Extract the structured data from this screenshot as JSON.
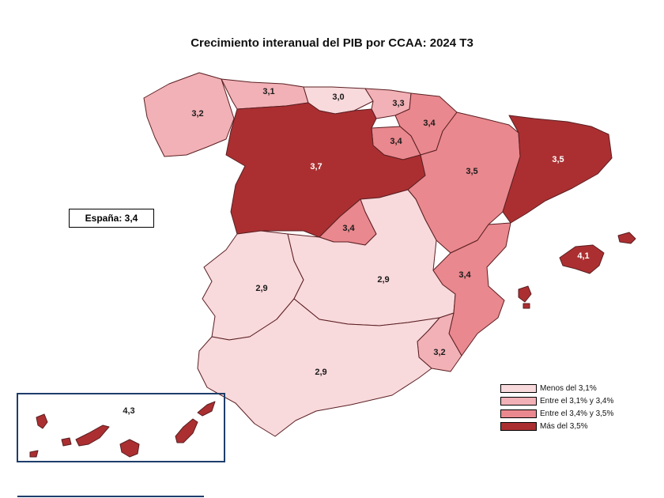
{
  "title": "Crecimiento interanual del PIB por CCAA: 2024 T3",
  "spain_label": "España: 3,4",
  "colors": {
    "lightest": "#f8d9dc",
    "light": "#f2b1b6",
    "medium": "#e9888e",
    "dark": "#ab2f31",
    "border": "#5a1f22",
    "canarias_frame": "#1e3d6b"
  },
  "legend": [
    {
      "label": "Menos del 3,1%",
      "color": "#f8d9dc"
    },
    {
      "label": "Entre el 3,1% y 3,4%",
      "color": "#f2b1b6"
    },
    {
      "label": "Entre el 3,4% y 3,5%",
      "color": "#e9888e"
    },
    {
      "label": "Más del 3,5%",
      "color": "#ab2f31"
    }
  ],
  "regions": [
    {
      "id": "galicia",
      "value": "3,2",
      "level": "light"
    },
    {
      "id": "asturias",
      "value": "3,1",
      "level": "light"
    },
    {
      "id": "cantabria",
      "value": "3,0",
      "level": "lightest"
    },
    {
      "id": "pais-vasco",
      "value": "3,3",
      "level": "light"
    },
    {
      "id": "navarra",
      "value": "3,4",
      "level": "medium"
    },
    {
      "id": "la-rioja",
      "value": "3,4",
      "level": "medium"
    },
    {
      "id": "castilla-y-leon",
      "value": "3,7",
      "level": "dark"
    },
    {
      "id": "aragon",
      "value": "3,5",
      "level": "medium"
    },
    {
      "id": "cataluna",
      "value": "3,5",
      "level": "dark"
    },
    {
      "id": "madrid",
      "value": "3,4",
      "level": "medium"
    },
    {
      "id": "extremadura",
      "value": "2,9",
      "level": "lightest"
    },
    {
      "id": "castilla-la-mancha",
      "value": "2,9",
      "level": "lightest"
    },
    {
      "id": "comunidad-valenciana",
      "value": "3,4",
      "level": "medium"
    },
    {
      "id": "murcia",
      "value": "3,2",
      "level": "light"
    },
    {
      "id": "andalucia",
      "value": "2,9",
      "level": "lightest"
    },
    {
      "id": "baleares",
      "value": "4,1",
      "level": "dark"
    },
    {
      "id": "canarias",
      "value": "4,3",
      "level": "dark"
    }
  ]
}
